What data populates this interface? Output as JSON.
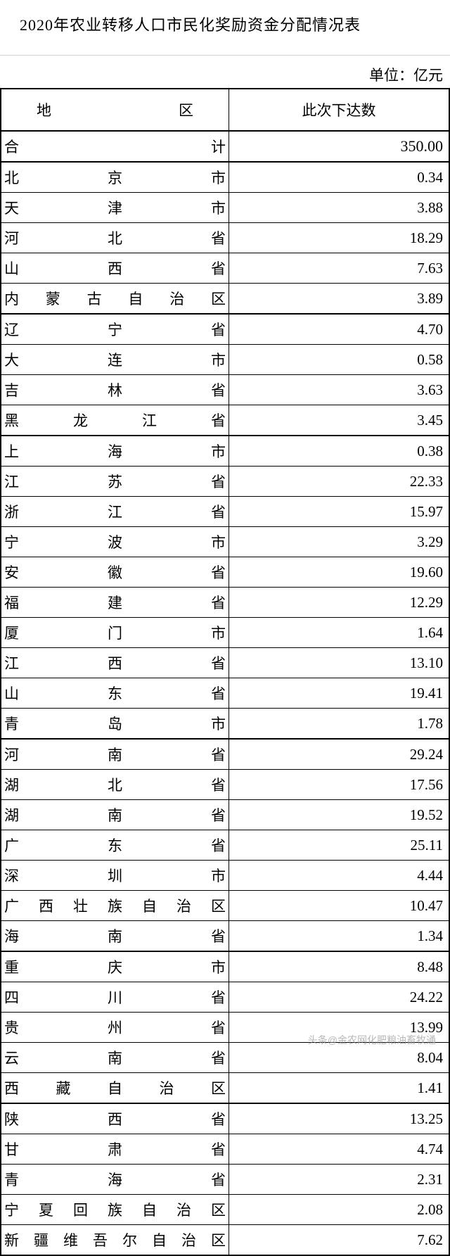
{
  "title": "2020年农业转移人口市民化奖励资金分配情况表",
  "unit_label": "单位：亿元",
  "header": {
    "region": "地　　　　区",
    "value": "此次下达数"
  },
  "total": {
    "label": "合　　　　　　　　　计",
    "value": "350.00"
  },
  "groups": [
    [
      {
        "region": "北　　　京　　　市",
        "value": "0.34"
      },
      {
        "region": "天　　　津　　　市",
        "value": "3.88"
      },
      {
        "region": "河　　　北　　　省",
        "value": "18.29"
      },
      {
        "region": "山　　　西　　　省",
        "value": "7.63"
      },
      {
        "region": "内　蒙　古　自　治　区",
        "value": "3.89"
      }
    ],
    [
      {
        "region": "辽　　　宁　　　省",
        "value": "4.70"
      },
      {
        "region": "大　　　连　　　市",
        "value": "0.58"
      },
      {
        "region": "吉　　　林　　　省",
        "value": "3.63"
      },
      {
        "region": "黑　　龙　　江　　省",
        "value": "3.45"
      }
    ],
    [
      {
        "region": "上　　　海　　　市",
        "value": "0.38"
      },
      {
        "region": "江　　　苏　　　省",
        "value": "22.33"
      },
      {
        "region": "浙　　　江　　　省",
        "value": "15.97"
      },
      {
        "region": "宁　　　波　　　市",
        "value": "3.29"
      },
      {
        "region": "安　　　徽　　　省",
        "value": "19.60"
      },
      {
        "region": "福　　　建　　　省",
        "value": "12.29"
      },
      {
        "region": "厦　　　门　　　市",
        "value": "1.64"
      },
      {
        "region": "江　　　西　　　省",
        "value": "13.10"
      },
      {
        "region": "山　　　东　　　省",
        "value": "19.41"
      },
      {
        "region": "青　　　岛　　　市",
        "value": "1.78"
      }
    ],
    [
      {
        "region": "河　　　南　　　省",
        "value": "29.24"
      },
      {
        "region": "湖　　　北　　　省",
        "value": "17.56"
      },
      {
        "region": "湖　　　南　　　省",
        "value": "19.52"
      },
      {
        "region": "广　　　东　　　省",
        "value": "25.11"
      },
      {
        "region": "深　　　圳　　　市",
        "value": "4.44"
      },
      {
        "region": "广　西　壮　族　自　治　区",
        "value": "10.47"
      },
      {
        "region": "海　　　南　　　省",
        "value": "1.34"
      }
    ],
    [
      {
        "region": "重　　　庆　　　市",
        "value": "8.48"
      },
      {
        "region": "四　　　川　　　省",
        "value": "24.22"
      },
      {
        "region": "贵　　　州　　　省",
        "value": "13.99"
      },
      {
        "region": "云　　　南　　　省",
        "value": "8.04"
      },
      {
        "region": "西　　藏　　自　　治　　区",
        "value": "1.41"
      }
    ],
    [
      {
        "region": "陕　　　西　　　省",
        "value": "13.25"
      },
      {
        "region": "甘　　　肃　　　省",
        "value": "4.74"
      },
      {
        "region": "青　　　海　　　省",
        "value": "2.31"
      },
      {
        "region": "宁　夏　回　族　自　治　区",
        "value": "2.08"
      },
      {
        "region": "新　疆　维　吾　尔　自　治　区",
        "value": "7.62"
      }
    ]
  ],
  "watermark": "头条@金农网化肥粮油畜牧通",
  "styling": {
    "background_color": "#ffffff",
    "text_color": "#000000",
    "border_color": "#000000",
    "title_fontsize": 22,
    "cell_fontsize": 21,
    "font_family": "SimSun"
  }
}
